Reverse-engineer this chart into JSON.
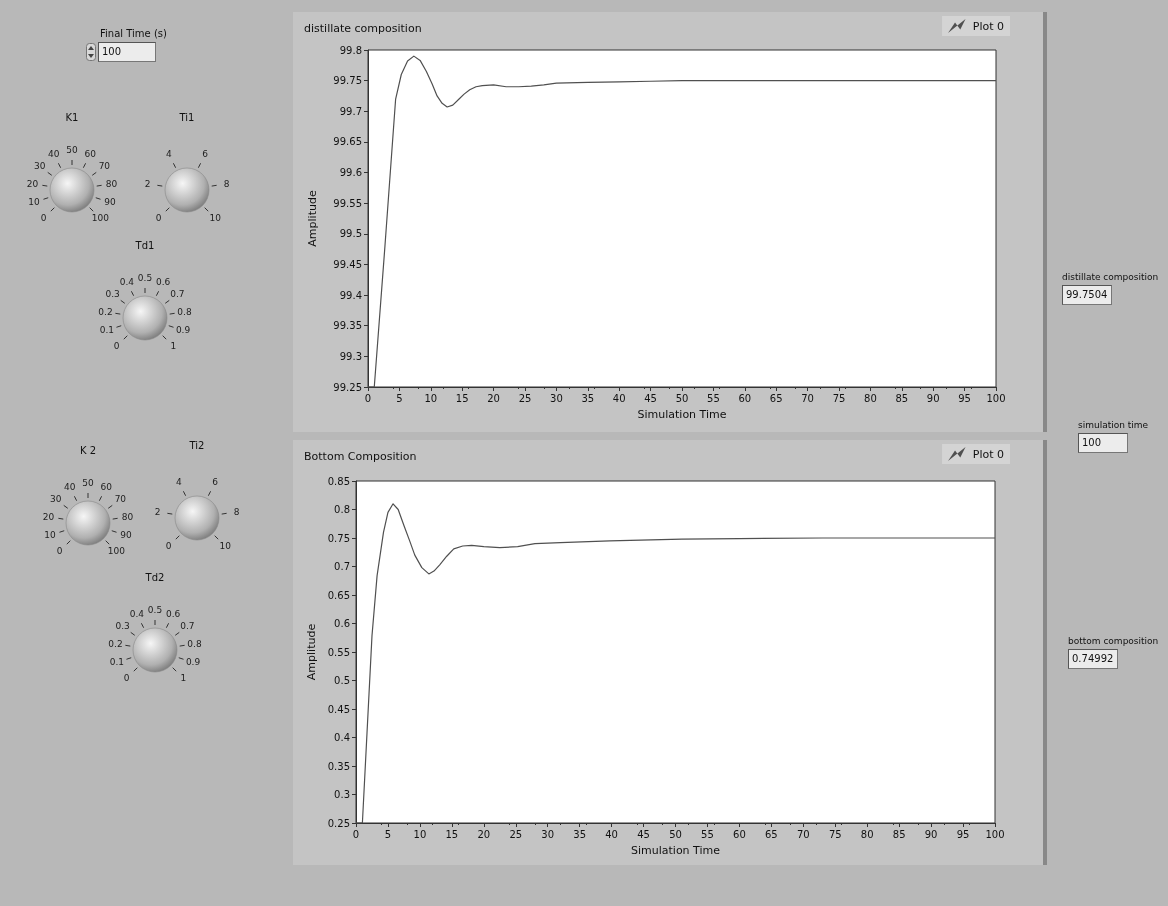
{
  "chart_data": [
    {
      "type": "line",
      "title": "distillate composition",
      "xlabel": "Simulation Time",
      "ylabel": "Amplitude",
      "legend": "top right",
      "grid": false,
      "xlim": [
        0,
        100
      ],
      "xticks": [
        0,
        5,
        10,
        15,
        20,
        25,
        30,
        35,
        40,
        45,
        50,
        55,
        60,
        65,
        70,
        75,
        80,
        85,
        90,
        95,
        100
      ],
      "ylim": [
        99.25,
        99.8
      ],
      "yticks": [
        99.25,
        99.3,
        99.35,
        99.4,
        99.45,
        99.5,
        99.55,
        99.6,
        99.65,
        99.7,
        99.75,
        99.8
      ],
      "series": [
        {
          "name": "Plot 0",
          "color": "#505050",
          "x": [
            0,
            1,
            2.7,
            4.4,
            5.3,
            6.3,
            7.3,
            8.3,
            9.3,
            10.2,
            11,
            11.8,
            12.6,
            13.5,
            14.5,
            15.3,
            16.2,
            17.2,
            18.2,
            20,
            22,
            24,
            26,
            28,
            30,
            35,
            40,
            45,
            50,
            60,
            70,
            80,
            90,
            100
          ],
          "values": [
            99.25,
            99.25,
            99.48,
            99.72,
            99.76,
            99.782,
            99.79,
            99.783,
            99.765,
            99.745,
            99.725,
            99.713,
            99.707,
            99.71,
            99.72,
            99.728,
            99.735,
            99.74,
            99.742,
            99.743,
            99.74,
            99.74,
            99.741,
            99.743,
            99.746,
            99.747,
            99.748,
            99.749,
            99.75,
            99.75,
            99.75,
            99.75,
            99.75,
            99.75
          ]
        }
      ]
    },
    {
      "type": "line",
      "title": "Bottom Composition",
      "xlabel": "Simulation Time",
      "ylabel": "Amplitude",
      "legend": "top right",
      "grid": false,
      "xlim": [
        0,
        100
      ],
      "xticks": [
        0,
        5,
        10,
        15,
        20,
        25,
        30,
        35,
        40,
        45,
        50,
        55,
        60,
        65,
        70,
        75,
        80,
        85,
        90,
        95,
        100
      ],
      "ylim": [
        0.25,
        0.85
      ],
      "yticks": [
        0.25,
        0.3,
        0.35,
        0.4,
        0.45,
        0.5,
        0.55,
        0.6,
        0.65,
        0.7,
        0.75,
        0.8,
        0.85
      ],
      "series": [
        {
          "name": "Plot 0",
          "color": "#505050",
          "x": [
            0,
            1,
            2.5,
            3.3,
            4.3,
            5,
            5.8,
            6.6,
            7.5,
            8.4,
            9.2,
            10.3,
            11.4,
            12.2,
            13.1,
            14.2,
            15.3,
            16.7,
            18.1,
            20,
            22.5,
            25.3,
            28,
            32,
            39.7,
            51,
            60,
            73,
            80,
            90,
            100
          ],
          "values": [
            0.25,
            0.25,
            0.578,
            0.684,
            0.76,
            0.795,
            0.81,
            0.8,
            0.772,
            0.745,
            0.72,
            0.698,
            0.687,
            0.692,
            0.703,
            0.718,
            0.731,
            0.736,
            0.737,
            0.735,
            0.733,
            0.735,
            0.74,
            0.742,
            0.745,
            0.748,
            0.749,
            0.75,
            0.75,
            0.75,
            0.75
          ]
        }
      ]
    },
    {
      "type": "other",
      "annotations": [
        "Final Time (s)",
        "100"
      ]
    },
    {
      "type": "other",
      "title": "K1",
      "annotations": [
        "0",
        "10",
        "20",
        "30",
        "40",
        "50",
        "60",
        "70",
        "80",
        "90",
        "100"
      ]
    },
    {
      "type": "other",
      "title": "Ti1",
      "annotations": [
        "0",
        "2",
        "4",
        "6",
        "8",
        "10"
      ]
    },
    {
      "type": "other",
      "title": "Td1",
      "annotations": [
        "0",
        "0.1",
        "0.2",
        "0.3",
        "0.4",
        "0.5",
        "0.6",
        "0.7",
        "0.8",
        "0.9",
        "1"
      ]
    },
    {
      "type": "other",
      "title": "K 2",
      "annotations": [
        "0",
        "10",
        "20",
        "30",
        "40",
        "50",
        "60",
        "70",
        "80",
        "90",
        "100"
      ]
    },
    {
      "type": "other",
      "title": "Ti2",
      "annotations": [
        "0",
        "2",
        "4",
        "6",
        "8",
        "10"
      ]
    },
    {
      "type": "other",
      "title": "Td2",
      "annotations": [
        "0",
        "0.1",
        "0.2",
        "0.3",
        "0.4",
        "0.5",
        "0.6",
        "0.7",
        "0.8",
        "0.9",
        "1"
      ]
    },
    {
      "type": "other",
      "annotations": [
        "distillate composition",
        "99.7504",
        "simulation time",
        "100",
        "bottom composition",
        "0.74992"
      ]
    }
  ]
}
